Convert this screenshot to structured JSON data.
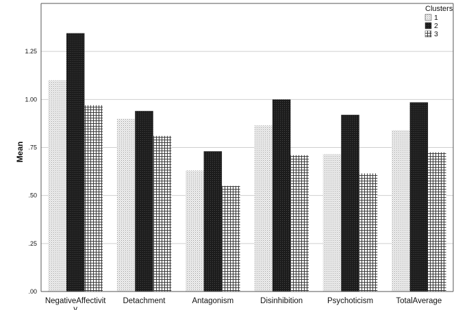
{
  "chart_data": {
    "type": "bar",
    "ylabel": "Mean",
    "xlabel": "",
    "ylim": [
      0,
      1.5
    ],
    "grid": true,
    "legend_position": "top-right",
    "legend_title": "Clusters",
    "categories": [
      "NegativeAffectivity",
      "Detachment",
      "Antagonism",
      "Disinhibition",
      "Psychoticism",
      "TotalAverage"
    ],
    "category_labels": [
      [
        "NegativeAffectivit",
        "y"
      ],
      [
        "Detachment"
      ],
      [
        "Antagonism"
      ],
      [
        "Disinhibition"
      ],
      [
        "Psychoticism"
      ],
      [
        "TotalAverage"
      ]
    ],
    "yticks": [
      0,
      0.25,
      0.5,
      0.75,
      1.0,
      1.25
    ],
    "ytick_labels": [
      ".00",
      ".25",
      ".50",
      ".75",
      "1.00",
      "1.25"
    ],
    "series": [
      {
        "name": "1",
        "values": [
          1.1,
          0.9,
          0.63,
          0.865,
          0.715,
          0.84
        ],
        "pattern": "dots-light"
      },
      {
        "name": "2",
        "values": [
          1.345,
          0.94,
          0.73,
          1.0,
          0.92,
          0.985
        ],
        "pattern": "dark"
      },
      {
        "name": "3",
        "values": [
          0.97,
          0.81,
          0.55,
          0.71,
          0.615,
          0.725
        ],
        "pattern": "grid"
      }
    ],
    "colors": {
      "axis": "#555555",
      "grid": "#cfcfcf",
      "text": "#111111",
      "dark_fill": "#1c1c1c"
    }
  }
}
